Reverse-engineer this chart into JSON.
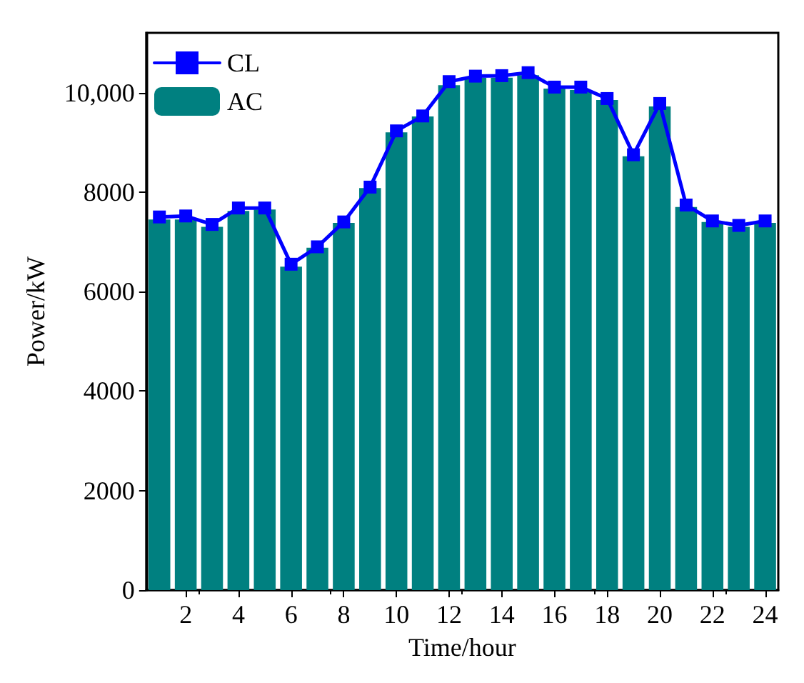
{
  "chart_data": {
    "type": "bar",
    "xlabel": "Time/hour",
    "ylabel": "Power/kW",
    "x": [
      1,
      2,
      3,
      4,
      5,
      6,
      7,
      8,
      9,
      10,
      11,
      12,
      13,
      14,
      15,
      16,
      17,
      18,
      19,
      20,
      21,
      22,
      23,
      24
    ],
    "xlim": [
      0.5,
      24.5
    ],
    "xticks": [
      2,
      4,
      6,
      8,
      10,
      12,
      14,
      16,
      18,
      20,
      22,
      24
    ],
    "ylim": [
      0,
      11200
    ],
    "yticks": [
      0,
      2000,
      4000,
      6000,
      8000,
      {
        "value": 10000,
        "label": "10,000"
      }
    ],
    "series": [
      {
        "name": "CL",
        "type": "line",
        "color": "#0000ff",
        "marker": "square",
        "line_style": "solid",
        "values": [
          7500,
          7520,
          7350,
          7680,
          7680,
          6550,
          6900,
          7400,
          8100,
          9230,
          9530,
          10220,
          10330,
          10340,
          10400,
          10110,
          10110,
          9880,
          8750,
          9780,
          7740,
          7420,
          7330,
          7420
        ]
      },
      {
        "name": "AC",
        "color": "#008080",
        "values": [
          7450,
          7450,
          7300,
          7620,
          7650,
          6500,
          6880,
          7380,
          8080,
          9200,
          9520,
          10150,
          10300,
          10300,
          10350,
          10080,
          10050,
          9850,
          8720,
          9720,
          7700,
          7400,
          7300,
          7380
        ]
      }
    ],
    "legend": "top left",
    "grid": false
  }
}
